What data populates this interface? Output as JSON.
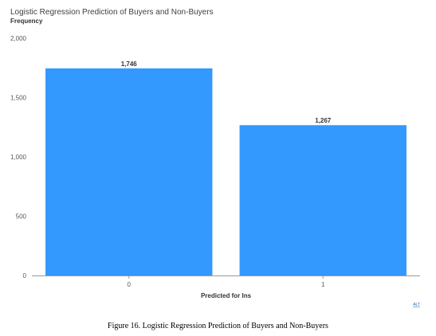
{
  "chart_data": {
    "type": "bar",
    "title": "Logistic Regression Prediction of Buyers and Non-Buyers",
    "ylabel": "Frequency",
    "xlabel": "Predicted for Ins",
    "categories": [
      "0",
      "1"
    ],
    "values": [
      1746,
      1267
    ],
    "data_labels": [
      "1,746",
      "1,267"
    ],
    "ylim": [
      0,
      2000
    ],
    "yticks": [
      0,
      500,
      1000,
      1500,
      2000
    ],
    "ytick_labels": [
      "0",
      "500",
      "1,000",
      "1,500",
      "2,000"
    ],
    "grid": false,
    "legend": "none",
    "bar_color": "#3399ff"
  },
  "footnote": "ALT",
  "caption": "Figure 16. Logistic Regression Prediction of Buyers and Non-Buyers"
}
